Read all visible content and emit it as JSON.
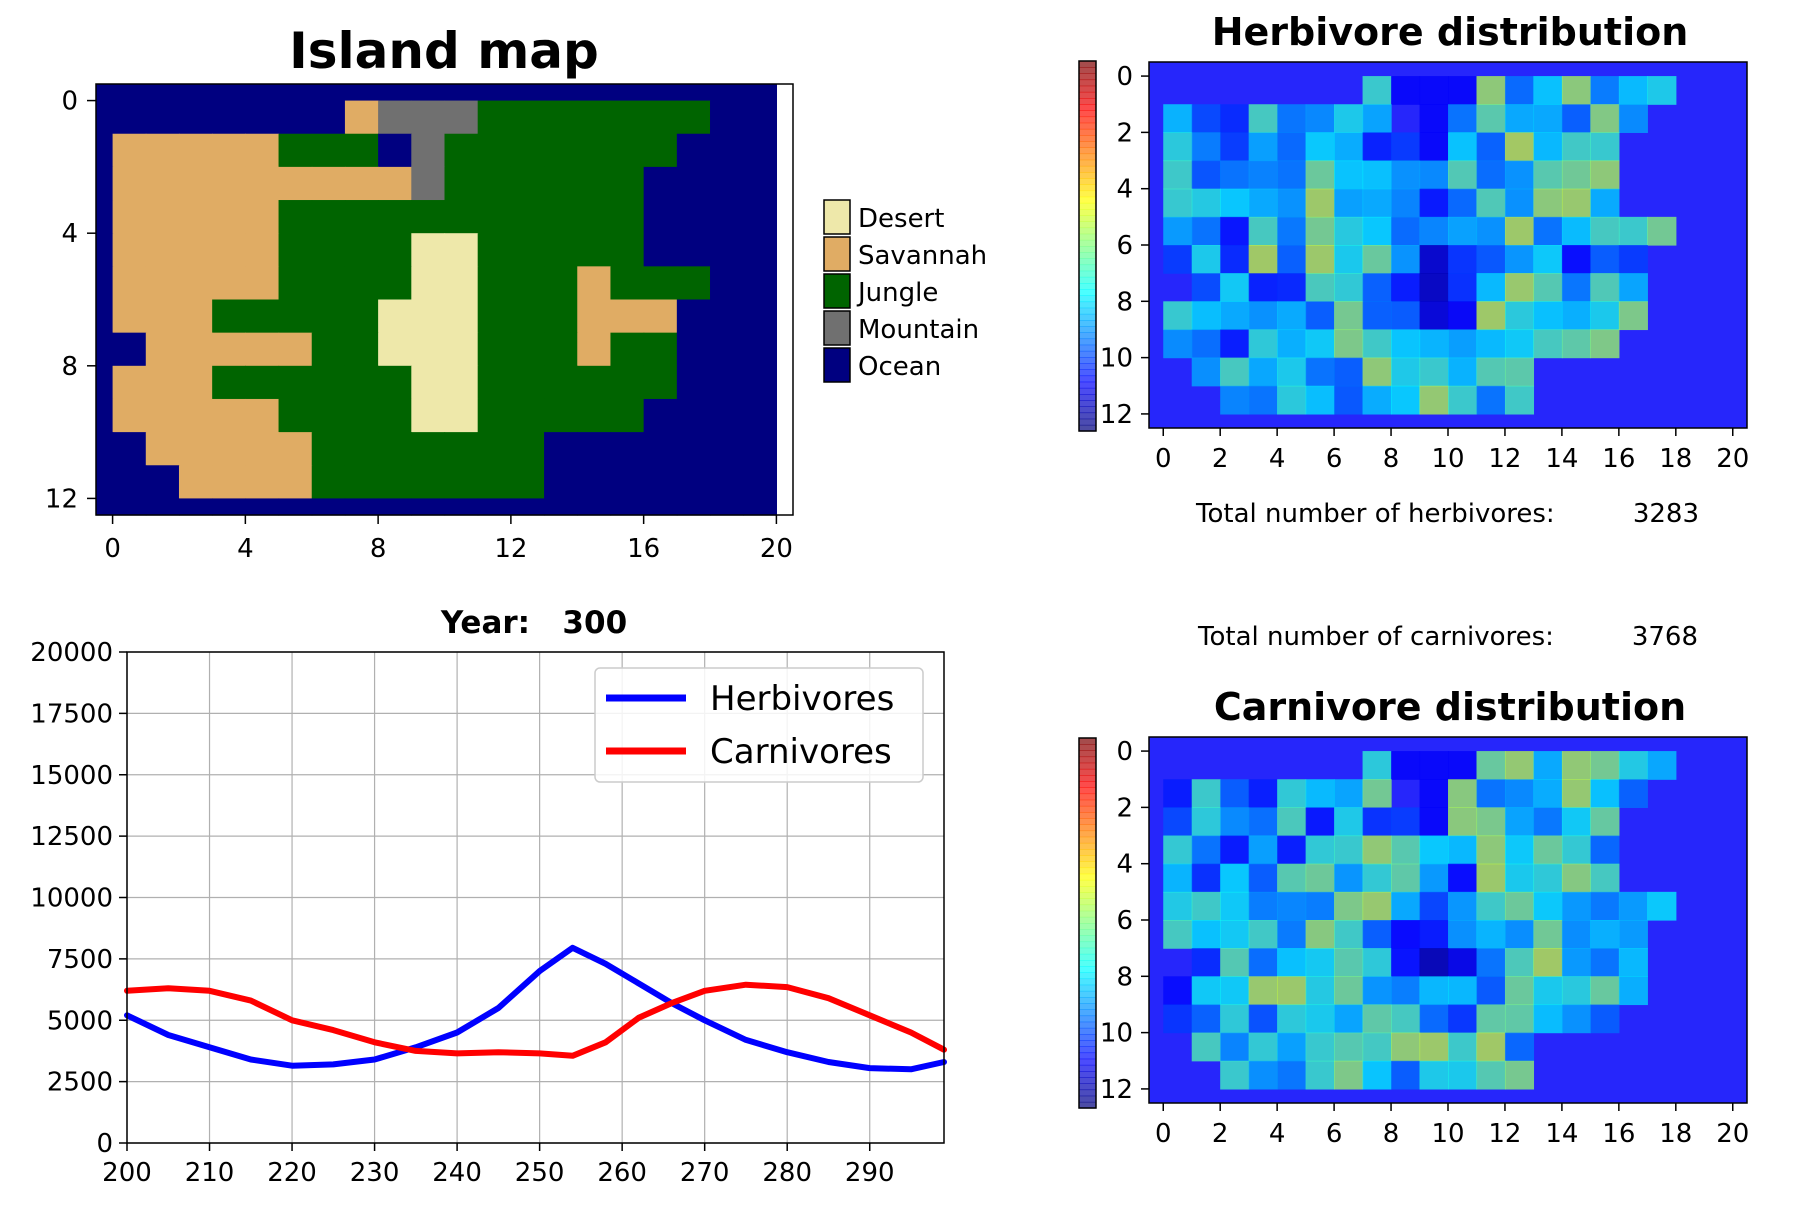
{
  "colors": {
    "Desert": "#eee8aa",
    "Savannah": "#e0ac64",
    "Jungle": "#006400",
    "Mountain": "#707070",
    "Ocean": "#000080",
    "herbivores_line": "#0000ff",
    "carnivores_line": "#ff0000"
  },
  "island_map": {
    "title": "Island map",
    "rows": [
      "OOOOOOOOOOOOOOOOOOOOO",
      "OOOOOOOOSMMMJJJJJJJOO",
      "OSSSSSJJJOMJJJJJJJOOO",
      "OSSSSSSSSSMJJJJJJOOOO",
      "OSSSSSJJJJJJJJJJJOOOO",
      "OSSSSSJJJJDDJJJJJOOOO",
      "OSSSSSJJJJDDJJJSJJJOO",
      "OSSSJJJJJDDDJJJSSSOOO",
      "OOSSSSSJJDDDJJJSJJOOO",
      "OSSSJJJJJJDDJJJJJJOOO",
      "OSSSSSJJJJDDJJJJJOOOO",
      "OOSSSSSJJJJJJJOOOOOOO",
      "OOOSSSSJJJJJJJOOOOOOO",
      "OOOOOOOOOOOOOOOOOOOOO"
    ],
    "x_ticks": [
      "0",
      "4",
      "8",
      "12",
      "16",
      "20"
    ],
    "y_ticks": [
      "0",
      "4",
      "8",
      "12"
    ],
    "legend": [
      "Desert",
      "Savannah",
      "Jungle",
      "Mountain",
      "Ocean"
    ]
  },
  "herbivore_stats": {
    "label": "Total number of herbivores:",
    "value": "3283"
  },
  "carnivore_stats": {
    "label": "Total number of carnivores:",
    "value": "3768"
  },
  "chart_data": [
    {
      "type": "line",
      "title": "Year:   300",
      "xlabel": "",
      "ylabel": "",
      "xlim": [
        200,
        299
      ],
      "ylim": [
        0,
        20000
      ],
      "x_ticks": [
        200,
        210,
        220,
        230,
        240,
        250,
        260,
        270,
        280,
        290
      ],
      "y_ticks": [
        0,
        2500,
        5000,
        7500,
        10000,
        12500,
        15000,
        17500,
        20000
      ],
      "grid": true,
      "legend_position": "top-right",
      "x": [
        200,
        205,
        210,
        215,
        220,
        225,
        230,
        235,
        240,
        245,
        250,
        254,
        258,
        262,
        266,
        270,
        275,
        280,
        285,
        290,
        295,
        299
      ],
      "series": [
        {
          "name": "Herbivores",
          "values": [
            5200,
            4400,
            3900,
            3400,
            3150,
            3200,
            3400,
            3900,
            4500,
            5500,
            7000,
            7950,
            7300,
            6500,
            5700,
            5000,
            4200,
            3700,
            3300,
            3050,
            3000,
            3300
          ]
        },
        {
          "name": "Carnivores",
          "values": [
            6200,
            6300,
            6200,
            5800,
            5000,
            4600,
            4100,
            3750,
            3650,
            3700,
            3650,
            3550,
            4100,
            5100,
            5700,
            6200,
            6450,
            6350,
            5900,
            5200,
            4500,
            3800
          ]
        }
      ]
    },
    {
      "type": "heatmap",
      "title": "Herbivore distribution",
      "x_ticks": [
        "0",
        "2",
        "4",
        "6",
        "8",
        "10",
        "12",
        "14",
        "16",
        "18",
        "20"
      ],
      "y_ticks": [
        "0",
        "2",
        "4",
        "6",
        "8",
        "10",
        "12"
      ],
      "colormap": "jet",
      "alpha": 0.7
    },
    {
      "type": "heatmap",
      "title": "Carnivore distribution",
      "x_ticks": [
        "0",
        "2",
        "4",
        "6",
        "8",
        "10",
        "12",
        "14",
        "16",
        "18",
        "20"
      ],
      "y_ticks": [
        "0",
        "2",
        "4",
        "6",
        "8",
        "10",
        "12"
      ],
      "colormap": "jet",
      "alpha": 0.7
    }
  ]
}
